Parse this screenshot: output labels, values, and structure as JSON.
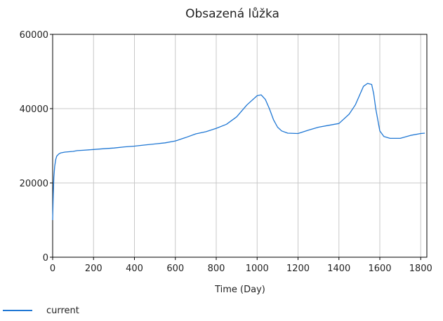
{
  "chart_data": {
    "type": "line",
    "title": "Obsazená lůžka",
    "xlabel": "Time (Day)",
    "ylabel": "",
    "xlim": [
      0,
      1830
    ],
    "ylim": [
      0,
      60000
    ],
    "xticks": [
      0,
      200,
      400,
      600,
      800,
      1000,
      1200,
      1400,
      1600,
      1800
    ],
    "xtick_labels": [
      "0",
      "200",
      "400",
      "600",
      "800",
      "1000",
      "1200",
      "1400",
      "1600",
      "1800"
    ],
    "yticks": [
      0,
      20000,
      40000,
      60000
    ],
    "ytick_labels": [
      "0",
      "20000",
      "40000",
      "60000"
    ],
    "grid": true,
    "legend_position": "bottom-left",
    "series": [
      {
        "name": "current",
        "color": "#1f77d4",
        "x": [
          0,
          3,
          6,
          10,
          15,
          20,
          30,
          40,
          60,
          80,
          100,
          120,
          150,
          200,
          250,
          300,
          350,
          400,
          450,
          500,
          550,
          600,
          650,
          700,
          750,
          800,
          850,
          900,
          950,
          1000,
          1020,
          1040,
          1060,
          1080,
          1100,
          1120,
          1150,
          1200,
          1250,
          1300,
          1350,
          1400,
          1450,
          1480,
          1500,
          1520,
          1540,
          1560,
          1570,
          1580,
          1600,
          1620,
          1650,
          1700,
          1750,
          1800,
          1820
        ],
        "y": [
          10000,
          17000,
          21500,
          24500,
          26300,
          27200,
          27800,
          28100,
          28300,
          28400,
          28500,
          28700,
          28800,
          29000,
          29200,
          29400,
          29700,
          29900,
          30200,
          30500,
          30800,
          31300,
          32200,
          33200,
          33800,
          34700,
          35800,
          37800,
          41000,
          43500,
          43700,
          42500,
          40000,
          37000,
          35000,
          34000,
          33400,
          33300,
          34200,
          35000,
          35500,
          36000,
          38500,
          41000,
          43500,
          46000,
          46800,
          46500,
          44000,
          40000,
          34000,
          32500,
          32000,
          32000,
          32800,
          33300,
          33400
        ]
      }
    ]
  }
}
